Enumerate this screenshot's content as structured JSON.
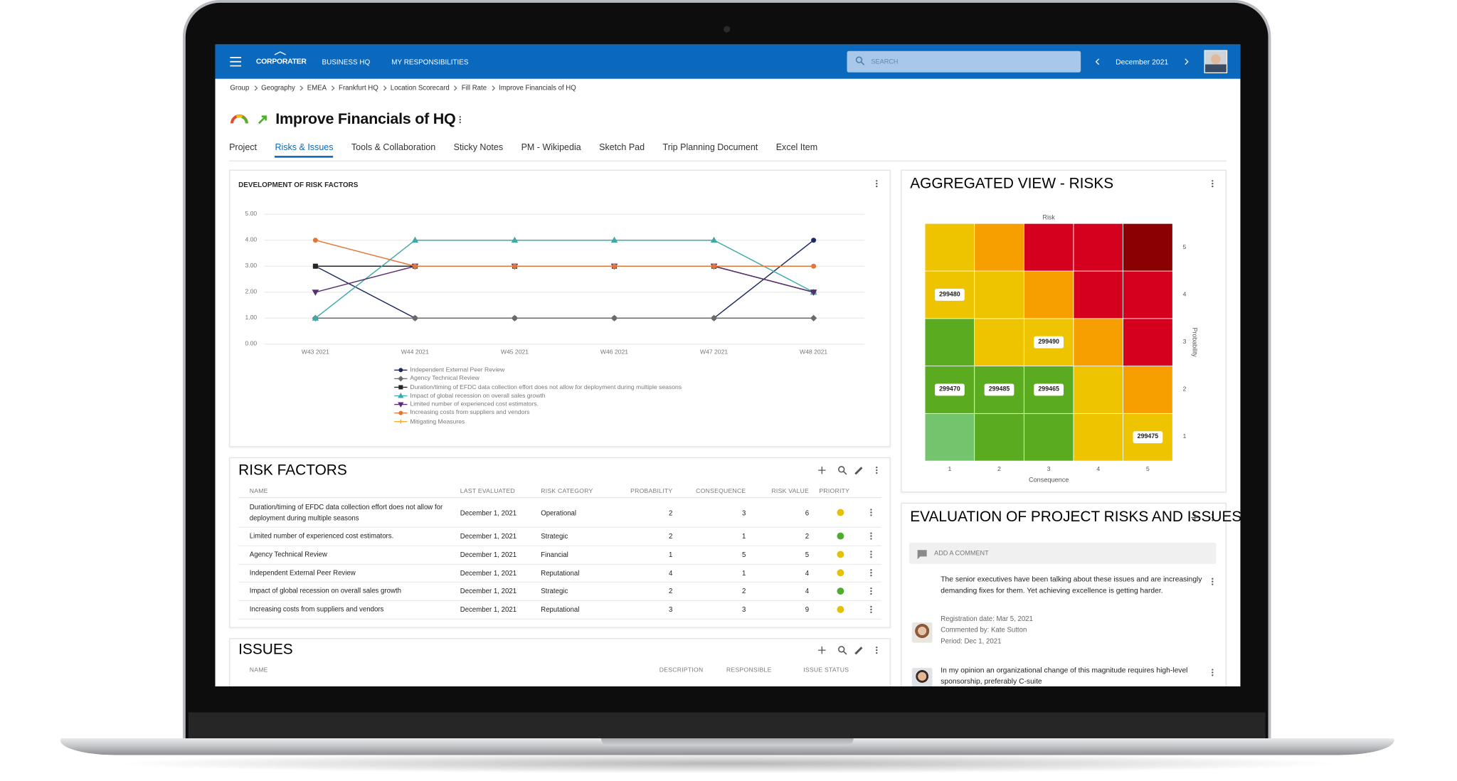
{
  "nav": {
    "logo": "CORPORATER",
    "items": [
      "BUSINESS HQ",
      "MY RESPONSIBILITIES"
    ],
    "search_placeholder": "SEARCH",
    "period": "December 2021"
  },
  "breadcrumbs": [
    "Group",
    "Geography",
    "EMEA",
    "Frankfurt HQ",
    "Location Scorecard",
    "Fill Rate",
    "Improve Financials of HQ"
  ],
  "page_title": "Improve Financials of HQ",
  "tabs": [
    "Project",
    "Risks & Issues",
    "Tools & Collaboration",
    "Sticky Notes",
    "PM - Wikipedia",
    "Sketch Pad",
    "Trip Planning Document",
    "Excel Item"
  ],
  "active_tab": 1,
  "line_chart": {
    "type": "line",
    "title": "DEVELOPMENT OF RISK FACTORS",
    "categories": [
      "W43 2021",
      "W44 2021",
      "W45 2021",
      "W46 2021",
      "W47 2021",
      "W48 2021"
    ],
    "series": [
      {
        "name": "Independent External Peer Review",
        "color": "#1e2a5e",
        "marker": "circle",
        "values": [
          3,
          1,
          1,
          1,
          1,
          4
        ]
      },
      {
        "name": "Agency Technical Review",
        "color": "#6b6b6b",
        "marker": "diamond",
        "values": [
          1,
          1,
          1,
          1,
          1,
          1
        ]
      },
      {
        "name": "Duration/timing of EFDC data collection effort does not allow for deployment during multiple seasons",
        "color": "#262626",
        "marker": "square",
        "values": [
          3,
          3,
          3,
          3,
          3,
          2
        ]
      },
      {
        "name": "Impact of global recession on overall sales growth",
        "color": "#3fa9a9",
        "marker": "triangle",
        "values": [
          1,
          4,
          4,
          4,
          4,
          2
        ]
      },
      {
        "name": "Limited number of experienced cost estimators.",
        "color": "#5a2d73",
        "marker": "triangle-down",
        "values": [
          2,
          3,
          3,
          3,
          3,
          2
        ]
      },
      {
        "name": "Increasing costs from suppliers and vendors",
        "color": "#e2773a",
        "marker": "circle",
        "values": [
          4,
          3,
          3,
          3,
          3,
          3
        ]
      },
      {
        "name": "Mitigating Measures",
        "color": "#f2b134",
        "marker": "plus",
        "values": [
          null,
          null,
          null,
          null,
          null,
          null
        ]
      }
    ],
    "ylim": [
      0,
      5
    ],
    "yticks": [
      {
        "value": 0,
        "label": "0.00"
      },
      {
        "value": 1,
        "label": "1.00"
      },
      {
        "value": 2,
        "label": "2.00"
      },
      {
        "value": 3,
        "label": "3.00"
      },
      {
        "value": 4,
        "label": "4.00"
      },
      {
        "value": 5,
        "label": "5.00"
      }
    ],
    "grid": true
  },
  "heatmap": {
    "title": "AGGREGATED VIEW - RISKS",
    "top_label": "Risk",
    "x_label": "Consequence",
    "y_label": "Probability",
    "xlim": [
      0.5,
      5.5
    ],
    "ylim": [
      0.5,
      5.5
    ],
    "xticks": [
      1,
      2,
      3,
      4,
      5
    ],
    "yticks": [
      1,
      2,
      3,
      4,
      5
    ],
    "colors": [
      [
        "#74c46e",
        "#5aab1f",
        "#5aab1f",
        "#eec400",
        "#eec400"
      ],
      [
        "#5aab1f",
        "#5aab1f",
        "#5aab1f",
        "#eec400",
        "#f79e00"
      ],
      [
        "#5aab1f",
        "#eec400",
        "#eec400",
        "#f79e00",
        "#d5001d"
      ],
      [
        "#eec400",
        "#eec400",
        "#f79e00",
        "#d5001d",
        "#d5001d"
      ],
      [
        "#eec400",
        "#f79e00",
        "#d5001d",
        "#d5001d",
        "#8b0000"
      ]
    ],
    "badges": [
      {
        "label": "299480",
        "consequence": 1,
        "probability": 4
      },
      {
        "label": "299490",
        "consequence": 3,
        "probability": 3
      },
      {
        "label": "299470",
        "consequence": 1,
        "probability": 2
      },
      {
        "label": "299485",
        "consequence": 2,
        "probability": 2
      },
      {
        "label": "299465",
        "consequence": 3,
        "probability": 2
      },
      {
        "label": "299475",
        "consequence": 5,
        "probability": 1
      }
    ]
  },
  "risk_factors": {
    "title": "RISK FACTORS",
    "columns": [
      "NAME",
      "LAST EVALUATED",
      "RISK CATEGORY",
      "PROBABILITY",
      "CONSEQUENCE",
      "RISK VALUE",
      "PRIORITY"
    ],
    "rows": [
      {
        "name": "Duration/timing of EFDC data collection effort does not allow for deployment during multiple seasons",
        "last_evaluated": "December 1, 2021",
        "category": "Operational",
        "probability": 2,
        "consequence": 3,
        "risk_value": 6,
        "priority_color": "#e5c100"
      },
      {
        "name": "Limited number of experienced cost estimators.",
        "last_evaluated": "December 1, 2021",
        "category": "Strategic",
        "probability": 2,
        "consequence": 1,
        "risk_value": 2,
        "priority_color": "#4caf2a"
      },
      {
        "name": "Agency Technical Review",
        "last_evaluated": "December 1, 2021",
        "category": "Financial",
        "probability": 1,
        "consequence": 5,
        "risk_value": 5,
        "priority_color": "#e5c100"
      },
      {
        "name": "Independent External Peer Review",
        "last_evaluated": "December 1, 2021",
        "category": "Reputational",
        "probability": 4,
        "consequence": 1,
        "risk_value": 4,
        "priority_color": "#e5c100"
      },
      {
        "name": "Impact of global recession on overall sales growth",
        "last_evaluated": "December 1, 2021",
        "category": "Strategic",
        "probability": 2,
        "consequence": 2,
        "risk_value": 4,
        "priority_color": "#4caf2a"
      },
      {
        "name": "Increasing costs from suppliers and vendors",
        "last_evaluated": "December 1, 2021",
        "category": "Reputational",
        "probability": 3,
        "consequence": 3,
        "risk_value": 9,
        "priority_color": "#e5c100"
      }
    ]
  },
  "issues": {
    "title": "ISSUES",
    "columns": [
      "NAME",
      "DESCRIPTION",
      "RESPONSIBLE",
      "ISSUE STATUS"
    ]
  },
  "comments": {
    "title": "EVALUATION OF PROJECT RISKS AND ISSUES",
    "placeholder": "ADD A COMMENT",
    "items": [
      {
        "text": "The senior executives have been talking about these issues and are increasingly demanding fixes for them. Yet achieving excellence is getting harder.",
        "details": [
          "Registration date: Mar 5, 2021",
          "Commented by: Kate Sutton",
          "Period: Dec 1, 2021"
        ]
      },
      {
        "text": "In my opinion an organizational change of this magnitude requires high-level sponsorship, preferably C-suite",
        "details": []
      }
    ]
  }
}
